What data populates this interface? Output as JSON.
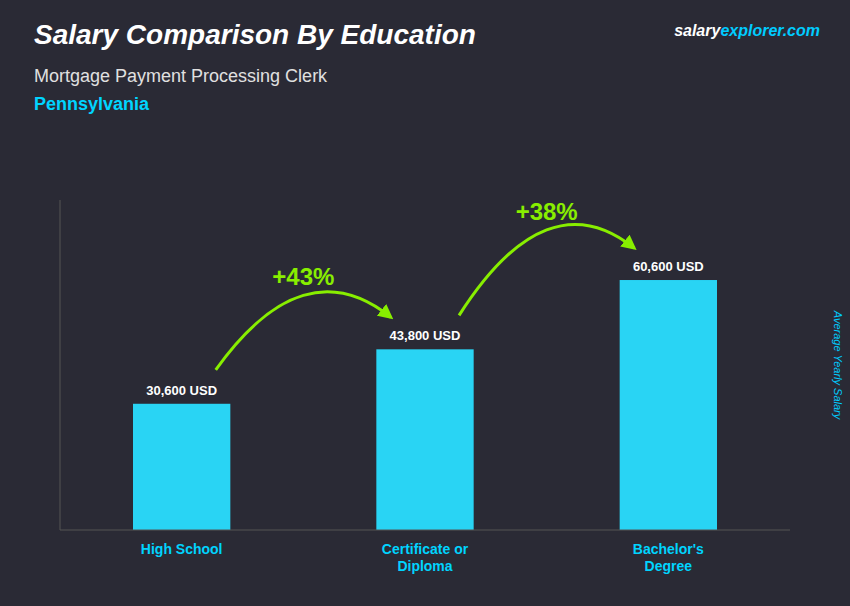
{
  "chart_data": {
    "type": "bar",
    "title": "Salary Comparison By Education",
    "subtitle": [
      "Mortgage Payment Processing Clerk",
      "Pennsylvania"
    ],
    "source": [
      "salary",
      "explorer.com"
    ],
    "ylabel": "Average Yearly Salary",
    "categories": [
      "High School",
      "Certificate or\nDiploma",
      "Bachelor's\nDegree"
    ],
    "values": [
      30600,
      43800,
      60600
    ],
    "value_labels": [
      "30,600 USD",
      "43,800 USD",
      "60,600 USD"
    ],
    "data_labels": true,
    "annotations": [
      "+43%",
      "+38%"
    ],
    "color": "#29d4f4",
    "ylim": [
      0,
      80000
    ],
    "tick_labels": "x",
    "grid": false
  }
}
